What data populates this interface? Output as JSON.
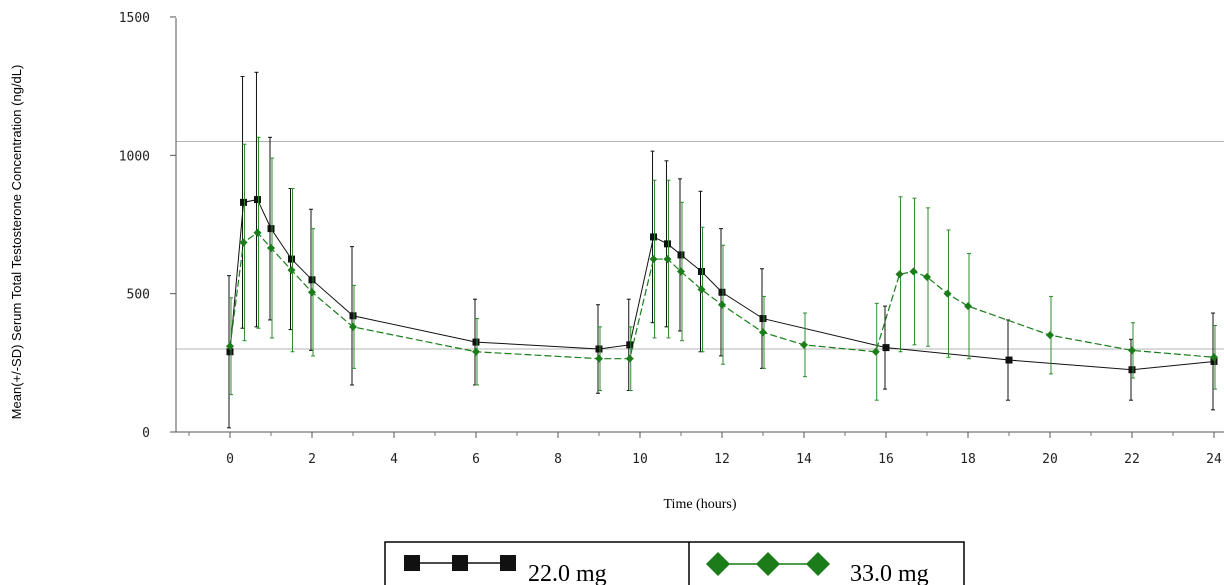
{
  "chart_data": {
    "type": "line",
    "title": "",
    "xlabel": "Time (hours)",
    "ylabel": "Mean(+/-SD) Serum Total Testosterone Concentration (ng/dL)",
    "xlim": [
      -1.3,
      24.1
    ],
    "ylim": [
      0,
      1500
    ],
    "xticks": [
      "0",
      "2",
      "4",
      "6",
      "8",
      "10",
      "12",
      "14",
      "16",
      "18",
      "20",
      "22",
      "24"
    ],
    "yticks": [
      "0",
      "500",
      "1000",
      "1500"
    ],
    "reference_lines": [
      300,
      1050
    ],
    "grid": false,
    "legend_position": "bottom-center",
    "series": [
      {
        "name": "22.0 mg",
        "color": "#111111",
        "marker": "square",
        "points": [
          {
            "x": 0,
            "y": 290,
            "sd": 275
          },
          {
            "x": 0.33,
            "y": 830,
            "sd": 455
          },
          {
            "x": 0.67,
            "y": 840,
            "sd": 460
          },
          {
            "x": 1,
            "y": 735,
            "sd": 330
          },
          {
            "x": 1.5,
            "y": 625,
            "sd": 255
          },
          {
            "x": 2,
            "y": 550,
            "sd": 255
          },
          {
            "x": 3,
            "y": 420,
            "sd": 250
          },
          {
            "x": 6,
            "y": 325,
            "sd": 155
          },
          {
            "x": 9,
            "y": 300,
            "sd": 160
          },
          {
            "x": 9.75,
            "y": 315,
            "sd": 165
          },
          {
            "x": 10.33,
            "y": 705,
            "sd": 310
          },
          {
            "x": 10.67,
            "y": 680,
            "sd": 300
          },
          {
            "x": 11,
            "y": 640,
            "sd": 275
          },
          {
            "x": 11.5,
            "y": 580,
            "sd": 290
          },
          {
            "x": 12,
            "y": 505,
            "sd": 230
          },
          {
            "x": 13,
            "y": 410,
            "sd": 180
          },
          {
            "x": 16,
            "y": 305,
            "sd": 150
          },
          {
            "x": 19,
            "y": 260,
            "sd": 145
          },
          {
            "x": 22,
            "y": 225,
            "sd": 110
          },
          {
            "x": 24,
            "y": 255,
            "sd": 175
          }
        ]
      },
      {
        "name": "33.0 mg",
        "color": "#1a7d1a",
        "marker": "diamond",
        "points": [
          {
            "x": 0,
            "y": 310,
            "sd": 175
          },
          {
            "x": 0.33,
            "y": 685,
            "sd": 355
          },
          {
            "x": 0.67,
            "y": 720,
            "sd": 345
          },
          {
            "x": 1,
            "y": 665,
            "sd": 325
          },
          {
            "x": 1.5,
            "y": 585,
            "sd": 295
          },
          {
            "x": 2,
            "y": 505,
            "sd": 230
          },
          {
            "x": 3,
            "y": 380,
            "sd": 150
          },
          {
            "x": 6,
            "y": 290,
            "sd": 120
          },
          {
            "x": 9,
            "y": 265,
            "sd": 115
          },
          {
            "x": 9.75,
            "y": 265,
            "sd": 115
          },
          {
            "x": 10.33,
            "y": 625,
            "sd": 285
          },
          {
            "x": 10.67,
            "y": 625,
            "sd": 285
          },
          {
            "x": 11,
            "y": 580,
            "sd": 250
          },
          {
            "x": 11.5,
            "y": 515,
            "sd": 225
          },
          {
            "x": 12,
            "y": 460,
            "sd": 215
          },
          {
            "x": 13,
            "y": 360,
            "sd": 130
          },
          {
            "x": 14,
            "y": 315,
            "sd": 115
          },
          {
            "x": 15.75,
            "y": 290,
            "sd": 175
          },
          {
            "x": 16.33,
            "y": 570,
            "sd": 280
          },
          {
            "x": 16.67,
            "y": 580,
            "sd": 265
          },
          {
            "x": 17,
            "y": 560,
            "sd": 250
          },
          {
            "x": 17.5,
            "y": 500,
            "sd": 230
          },
          {
            "x": 18,
            "y": 455,
            "sd": 190
          },
          {
            "x": 20,
            "y": 350,
            "sd": 140
          },
          {
            "x": 22,
            "y": 295,
            "sd": 100
          },
          {
            "x": 24,
            "y": 270,
            "sd": 115
          }
        ]
      }
    ]
  }
}
